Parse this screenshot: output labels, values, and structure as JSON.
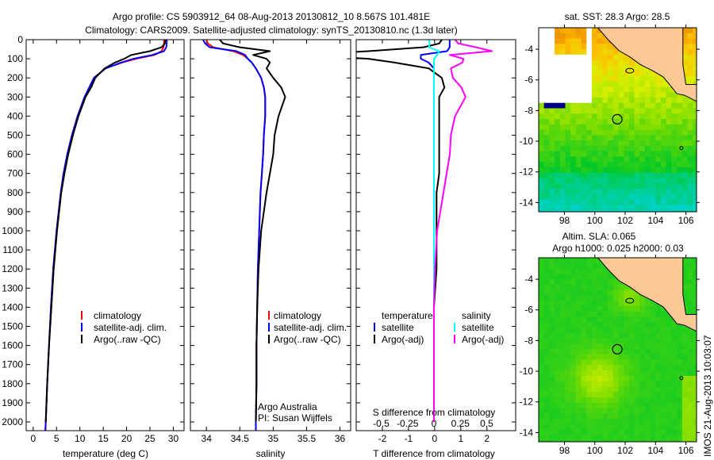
{
  "title_line1": "Argo profile: CS 5903912_64 08-Aug-2013 20130812_10 8.567S 101.481E",
  "title_line2": "Climatology: CARS2009. Satellite-adjusted climatology: synTS_20130810.nc (1.3d later)",
  "footer": "IMOS 21-Aug-2013 10:03:07",
  "colors": {
    "clim": "#ff0000",
    "sat": "#0000ff",
    "argo": "#000000",
    "s_sat": "#00ffff",
    "s_argo": "#ff00ff",
    "land": "#fbc896"
  },
  "depth_ticks": [
    0,
    100,
    200,
    300,
    400,
    500,
    600,
    700,
    800,
    900,
    1000,
    1100,
    1200,
    1300,
    1400,
    1500,
    1600,
    1700,
    1800,
    1900,
    2000
  ],
  "chart_data": [
    {
      "type": "line",
      "xlabel": "temperature (deg C)",
      "ylabel": "depth",
      "xlim": [
        -1.5,
        32.3
      ],
      "ylim": [
        2150,
        0
      ],
      "xticks": [
        0,
        5,
        10,
        15,
        20,
        25,
        30
      ],
      "legend": [
        "climatology",
        "satellite-adj. clim.",
        "Argo(..raw -QC)"
      ],
      "legend_placement": "bottom-center",
      "depth": [
        0,
        20,
        40,
        60,
        80,
        100,
        120,
        150,
        200,
        250,
        300,
        400,
        500,
        600,
        700,
        800,
        1000,
        1200,
        1400,
        1600,
        1800,
        2000,
        2050
      ],
      "series": [
        {
          "name": "climatology",
          "color": "clim",
          "values": [
            28.0,
            28.0,
            27.9,
            27.5,
            26,
            22,
            19,
            15.5,
            13,
            12,
            11,
            9.5,
            8.3,
            7.3,
            6.5,
            5.9,
            5.0,
            4.3,
            3.8,
            3.4,
            3.0,
            2.7,
            2.6
          ]
        },
        {
          "name": "satellite-adj. clim.",
          "color": "sat",
          "values": [
            28.6,
            28.6,
            28.5,
            28,
            25.5,
            21.5,
            18.8,
            15.5,
            13,
            12,
            11,
            9.5,
            8.3,
            7.3,
            6.5,
            5.9,
            5.0,
            4.3,
            3.8,
            3.4,
            3.0,
            2.7,
            2.6
          ]
        },
        {
          "name": "Argo(..raw -QC)",
          "color": "argo",
          "values": [
            28.3,
            28.2,
            27.5,
            25,
            21,
            19.5,
            17.5,
            15.3,
            13.3,
            12.4,
            11.2,
            9.7,
            8.5,
            7.5,
            6.7,
            6.0,
            5.1,
            4.4,
            3.9,
            3.4,
            3.0,
            2.7,
            null
          ]
        }
      ]
    },
    {
      "type": "line",
      "xlabel": "salinity",
      "xlim": [
        33.76,
        36.16
      ],
      "ylim": [
        2150,
        0
      ],
      "xticks": [
        34,
        34.5,
        35,
        35.5,
        36
      ],
      "legend": [
        "climatology",
        "satellite-adj. clim.",
        "Argo(..raw -QC)"
      ],
      "annotation": [
        "Argo Australia",
        "PI: Susan Wijffels"
      ],
      "depth": [
        0,
        20,
        40,
        60,
        80,
        100,
        120,
        150,
        200,
        250,
        300,
        400,
        500,
        600,
        700,
        800,
        1000,
        1200,
        1400,
        1600,
        1800,
        2000,
        2050
      ],
      "series": [
        {
          "name": "climatology",
          "color": "clim",
          "values": [
            34.0,
            34.02,
            34.1,
            34.4,
            34.55,
            34.62,
            34.68,
            34.74,
            34.82,
            34.86,
            34.88,
            34.88,
            34.86,
            34.85,
            34.83,
            34.81,
            34.79,
            34.77,
            34.76,
            34.75,
            34.75,
            34.74,
            34.74
          ]
        },
        {
          "name": "satellite-adj. clim.",
          "color": "sat",
          "values": [
            33.95,
            33.98,
            34.05,
            34.45,
            34.58,
            34.62,
            34.68,
            34.74,
            34.82,
            34.86,
            34.88,
            34.88,
            34.86,
            34.85,
            34.83,
            34.81,
            34.79,
            34.77,
            34.76,
            34.75,
            34.75,
            34.74,
            34.74
          ]
        },
        {
          "name": "Argo(..raw -QC)",
          "color": "argo",
          "values": [
            34.2,
            34.25,
            34.5,
            34.95,
            34.7,
            34.9,
            34.95,
            34.9,
            35.0,
            35.12,
            35.18,
            35.08,
            35.02,
            35.0,
            34.95,
            34.9,
            34.82,
            34.78,
            34.76,
            34.75,
            34.75,
            34.74,
            null
          ]
        }
      ]
    },
    {
      "type": "line",
      "xlabel": "T difference from climatology",
      "xlabel2": "S difference from climatology",
      "xlim": [
        -3.0,
        3.1
      ],
      "ylim": [
        2150,
        0
      ],
      "xticks": [
        -2,
        -1,
        0,
        1,
        2
      ],
      "xticks_s": [
        -0.5,
        -0.25,
        0,
        0.25,
        0.5
      ],
      "legend_groups": [
        {
          "title": "temperature",
          "items": [
            "satellite",
            "Argo(-adj)"
          ]
        },
        {
          "title": "salinity",
          "items": [
            "satellite",
            "Argo(-adj)"
          ]
        }
      ],
      "depth": [
        0,
        20,
        40,
        60,
        80,
        100,
        120,
        150,
        200,
        250,
        300,
        400,
        500,
        600,
        700,
        800,
        1000,
        1200,
        1400,
        1600,
        1800,
        2000
      ],
      "series": [
        {
          "name": "temperature satellite",
          "color": "sat",
          "unit": "T",
          "values": [
            0.6,
            0.6,
            0.6,
            0.5,
            -0.5,
            -0.5,
            -0.2,
            0,
            0,
            0,
            0,
            0,
            0,
            0,
            0,
            0,
            0,
            0,
            0,
            0,
            0,
            0
          ]
        },
        {
          "name": "temperature Argo(-adj)",
          "color": "argo",
          "unit": "T",
          "values": [
            0.3,
            0.2,
            -0.4,
            -2.5,
            -5,
            -2.5,
            -1.5,
            -0.2,
            0.3,
            0.4,
            0.2,
            0.2,
            0.2,
            0.2,
            0.2,
            0.1,
            0.1,
            0.1,
            0.0,
            0.0,
            0.0,
            0.0
          ]
        },
        {
          "name": "salinity satellite",
          "color": "s_sat",
          "unit": "S",
          "values": [
            -0.05,
            -0.04,
            -0.05,
            0.05,
            0.03,
            0,
            0,
            0,
            0,
            0,
            0,
            0,
            0,
            0,
            0,
            0,
            0,
            0,
            0,
            0,
            0,
            0
          ]
        },
        {
          "name": "salinity Argo(-adj)",
          "color": "s_argo",
          "unit": "S",
          "values": [
            0.2,
            0.23,
            0.4,
            0.55,
            0.15,
            0.28,
            0.27,
            0.16,
            0.18,
            0.26,
            0.3,
            0.2,
            0.16,
            0.15,
            0.12,
            0.09,
            0.03,
            0.01,
            0,
            0,
            0,
            0
          ]
        }
      ]
    },
    {
      "type": "heatmap",
      "title": "sat. SST: 28.3 Argo: 28.5",
      "xlim": [
        96.3,
        106.7
      ],
      "ylim": [
        -14.6,
        -2.6
      ],
      "xticks": [
        98,
        100,
        102,
        104,
        106
      ],
      "yticks": [
        -4,
        -6,
        -8,
        -10,
        -12,
        -14
      ],
      "marker": {
        "lon": 101.481,
        "lat": -8.567
      }
    },
    {
      "type": "heatmap",
      "title": "Altim. SLA: 0.065",
      "subtitle": "Argo h1000: 0.025 h2000: 0.03",
      "xlim": [
        96.3,
        106.7
      ],
      "ylim": [
        -14.6,
        -2.6
      ],
      "xticks": [
        98,
        100,
        102,
        104,
        106
      ],
      "yticks": [
        -4,
        -6,
        -8,
        -10,
        -12,
        -14
      ],
      "marker": {
        "lon": 101.481,
        "lat": -8.567
      }
    }
  ]
}
